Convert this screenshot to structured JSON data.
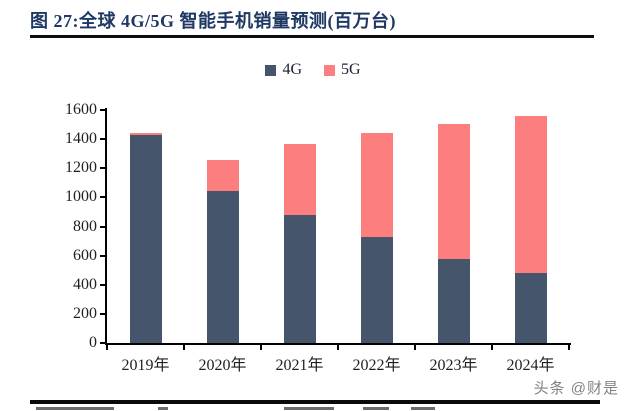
{
  "header": {
    "title": "图 27:全球 4G/5G 智能手机销量预测(百万台)"
  },
  "legend": {
    "items": [
      {
        "label": "4G",
        "color": "#45556c"
      },
      {
        "label": "5G",
        "color": "#fc7e7e"
      }
    ]
  },
  "watermark": {
    "text": "头条 @财是"
  },
  "chart_data": {
    "type": "bar",
    "stacked": true,
    "title": "全球4G/5G智能手机销量预测",
    "unit": "百万台",
    "categories": [
      "2019年",
      "2020年",
      "2021年",
      "2022年",
      "2023年",
      "2024年"
    ],
    "series": [
      {
        "name": "4G",
        "color": "#45556c",
        "values": [
          1425,
          1045,
          880,
          730,
          580,
          480
        ]
      },
      {
        "name": "5G",
        "color": "#fc7e7e",
        "values": [
          20,
          210,
          485,
          710,
          925,
          1080
        ]
      }
    ],
    "totals": [
      1445,
      1255,
      1365,
      1440,
      1505,
      1560
    ],
    "ylim": [
      0,
      1600
    ],
    "ytick_step": 200,
    "grid": false,
    "legend_position": "top-center"
  }
}
